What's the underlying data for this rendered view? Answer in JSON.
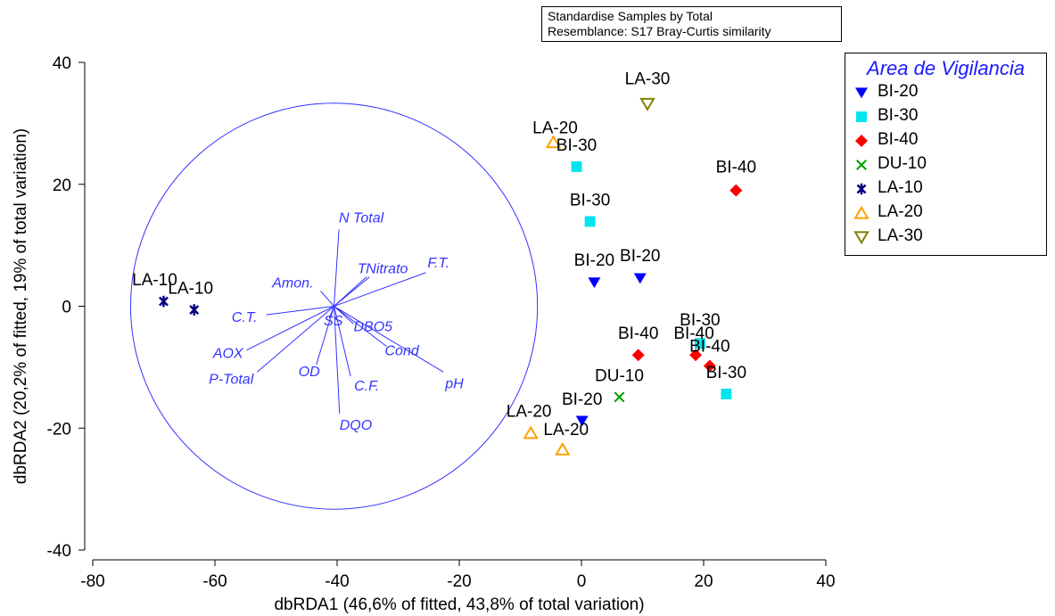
{
  "info_box": {
    "line1": "Standardise Samples by Total",
    "line2": "Resemblance: S17 Bray-Curtis similarity"
  },
  "legend": {
    "title": "Area de Vigilancia",
    "items": [
      {
        "label": "BI-20",
        "marker": "triangle-down-filled",
        "color": "#0000ff"
      },
      {
        "label": "BI-30",
        "marker": "square-filled",
        "color": "#00e5ee"
      },
      {
        "label": "BI-40",
        "marker": "diamond-filled",
        "color": "#ff0000"
      },
      {
        "label": "DU-10",
        "marker": "x-cross",
        "color": "#00a000"
      },
      {
        "label": "LA-10",
        "marker": "asterisk",
        "color": "#000080"
      },
      {
        "label": "LA-20",
        "marker": "triangle-up-open",
        "color": "#ffa000"
      },
      {
        "label": "LA-30",
        "marker": "triangle-down-open",
        "color": "#808000"
      }
    ]
  },
  "chart_data": {
    "type": "scatter",
    "xlabel": "dbRDA1 (46,6% of fitted, 43,8% of total variation)",
    "ylabel": "dbRDA2 (20,2% of fitted, 19% of total variation)",
    "xlim": [
      -80,
      40
    ],
    "ylim": [
      -40,
      40
    ],
    "xticks": [
      -80,
      -60,
      -40,
      -20,
      0,
      20,
      40
    ],
    "yticks": [
      -40,
      -20,
      0,
      20,
      40
    ],
    "grid": false,
    "legend_position": "right",
    "points": [
      {
        "group": "LA-30",
        "label": "LA-30",
        "x": 10.8,
        "y": 33.2
      },
      {
        "group": "LA-20",
        "label": "LA-20",
        "x": -4.6,
        "y": 26.9
      },
      {
        "group": "BI-30",
        "label": "BI-30",
        "x": -0.8,
        "y": 22.9
      },
      {
        "group": "BI-30",
        "label": "BI-30",
        "x": 1.4,
        "y": 13.9
      },
      {
        "group": "BI-40",
        "label": "BI-40",
        "x": 25.3,
        "y": 19.0
      },
      {
        "group": "BI-20",
        "label": "BI-20",
        "x": 2.1,
        "y": 3.9
      },
      {
        "group": "BI-20",
        "label": "BI-20",
        "x": 9.6,
        "y": 4.6
      },
      {
        "group": "LA-10",
        "label": "LA-10",
        "x": -68.4,
        "y": 0.8
      },
      {
        "group": "LA-10",
        "label": "LA-10",
        "x": -63.4,
        "y": -0.6
      },
      {
        "group": "BI-30",
        "label": "BI-30",
        "x": 19.4,
        "y": -6.1
      },
      {
        "group": "BI-40",
        "label": "BI-40",
        "x": 9.3,
        "y": -8.0
      },
      {
        "group": "BI-40",
        "label": "BI-40",
        "x": 18.7,
        "y": -8.0
      },
      {
        "group": "BI-40",
        "label": "BI-40",
        "x": 21.0,
        "y": -9.8
      },
      {
        "group": "BI-30",
        "label": "BI-30",
        "x": 23.7,
        "y": -14.4
      },
      {
        "group": "DU-10",
        "label": "DU-10",
        "x": 6.2,
        "y": -14.9
      },
      {
        "group": "BI-20",
        "label": "BI-20",
        "x": 0.1,
        "y": -18.8
      },
      {
        "group": "LA-20",
        "label": "LA-20",
        "x": -8.3,
        "y": -20.8
      },
      {
        "group": "LA-20",
        "label": "LA-20",
        "x": -3.1,
        "y": -23.5
      }
    ],
    "circle": {
      "center_x": -40.5,
      "center_y": 0,
      "radius": 33.3
    },
    "vectors": [
      {
        "label": "N Total",
        "x": -39.7,
        "y": 12.6
      },
      {
        "label": "F.T.",
        "x": -25.5,
        "y": 5.5
      },
      {
        "label": "Nitrato",
        "x": -34.7,
        "y": 4.8
      },
      {
        "label": "T",
        "x": -35.2,
        "y": 4.8
      },
      {
        "label": "Amon.",
        "x": -42.7,
        "y": 2.5
      },
      {
        "label": "C.T.",
        "x": -51.6,
        "y": -1.4
      },
      {
        "label": "SS",
        "x": -41.3,
        "y": -2.0
      },
      {
        "label": "DBO5",
        "x": -37.3,
        "y": -2.9
      },
      {
        "label": "AOX",
        "x": -54.8,
        "y": -7.2
      },
      {
        "label": "Cond",
        "x": -31.9,
        "y": -6.6
      },
      {
        "label": "OD",
        "x": -43.4,
        "y": -9.6
      },
      {
        "label": "P-Total",
        "x": -53.1,
        "y": -10.8
      },
      {
        "label": "pH",
        "x": -22.6,
        "y": -10.8
      },
      {
        "label": "C.F.",
        "x": -37.8,
        "y": -11.5
      },
      {
        "label": "DQO",
        "x": -39.6,
        "y": -17.6
      }
    ],
    "vector_origin": {
      "x": -40.5,
      "y": 0
    },
    "vector_color": "#3333ff"
  }
}
